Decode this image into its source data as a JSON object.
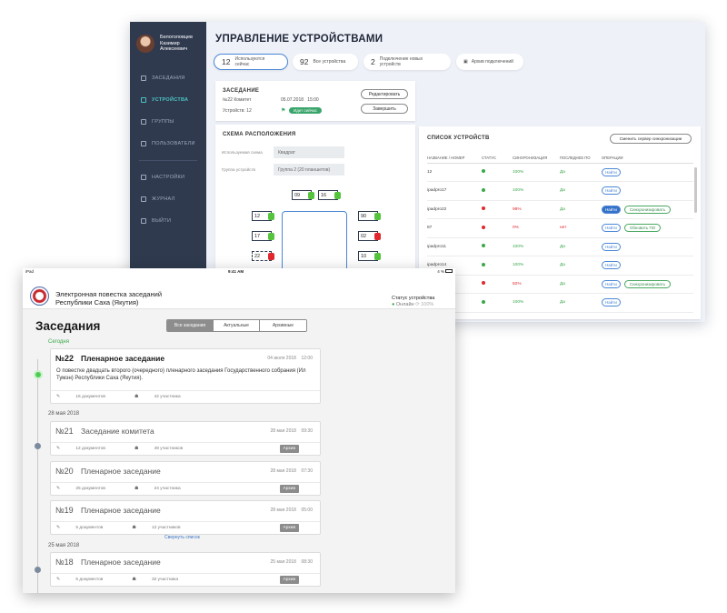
{
  "back": {
    "user": {
      "line1": "Белоголовцев",
      "line2": "Казимир",
      "line3": "Алексеевич"
    },
    "nav": [
      {
        "label": "ЗАСЕДАНИЯ"
      },
      {
        "label": "УСТРОЙСТВА"
      },
      {
        "label": "ГРУППЫ"
      },
      {
        "label": "ПОЛЬЗОВАТЕЛИ"
      },
      {
        "label": "НАСТРОЙКИ"
      },
      {
        "label": "ЖУРНАЛ"
      },
      {
        "label": "ВЫЙТИ"
      }
    ],
    "title": "УПРАВЛЕНИЕ УСТРОЙСТВАМИ",
    "stats": [
      {
        "num": "12",
        "label": "Используются сейчас"
      },
      {
        "num": "92",
        "label": "Все устройства"
      },
      {
        "num": "2",
        "label": "Подключение новых устройств"
      },
      {
        "num": "",
        "label": "Архив подключений"
      }
    ],
    "meeting": {
      "header": "ЗАСЕДАНИЕ",
      "number": "№22",
      "type": "Комитет",
      "date": "05.07.2018",
      "time": "15:00",
      "devices": "Устройств: 12",
      "status": "Идет сейчас",
      "edit": "Редактировать",
      "finish": "Завершить"
    },
    "scheme": {
      "header": "СХЕМА РАСПОЛОЖЕНИЯ",
      "scheme_label": "Используемая схема",
      "scheme_value": "Квадрат",
      "group_label": "Группа устройств",
      "group_value": "Группа 2 (20 планшетов)",
      "seats": [
        "09",
        "16",
        "12",
        "90",
        "17",
        "02",
        "22",
        "10"
      ]
    },
    "devices": {
      "header": "СПИСОК УСТРОЙСТВ",
      "change_server": "Сменить сервер синхронизации",
      "cols": [
        "НАЗВАНИЕ / НОМЕР",
        "СТАТУС",
        "СИНХРОНИЗАЦИЯ",
        "ПОСЛЕДНЕЕ ПО",
        "ОПЕРАЦИИ"
      ],
      "rows": [
        {
          "name": "12",
          "status": "green",
          "sync": "100%",
          "sync_color": "#3aa84a",
          "last": "Да",
          "find": "Найти",
          "extra": ""
        },
        {
          "name": "ipadpro17",
          "status": "green",
          "sync": "100%",
          "sync_color": "#3aa84a",
          "last": "Да",
          "find": "Найти",
          "extra": ""
        },
        {
          "name": "ipadpro22",
          "status": "red",
          "sync": "98%",
          "sync_color": "#e0282e",
          "last": "Да",
          "find": "Найти",
          "extra": "Синхронизировать"
        },
        {
          "name": "87",
          "status": "red",
          "sync": "0%",
          "sync_color": "#e0282e",
          "last": "нет",
          "find": "Найти",
          "extra": "Обновить ПО"
        },
        {
          "name": "ipadpro11",
          "status": "green",
          "sync": "100%",
          "sync_color": "#3aa84a",
          "last": "Да",
          "find": "Найти",
          "extra": ""
        },
        {
          "name": "ipadpro14",
          "status": "green",
          "sync": "100%",
          "sync_color": "#3aa84a",
          "last": "Да",
          "find": "Найти",
          "extra": ""
        },
        {
          "name": "",
          "status": "red",
          "sync": "82%",
          "sync_color": "#e0282e",
          "last": "Да",
          "find": "Найти",
          "extra": "Синхронизировать"
        },
        {
          "name": "",
          "status": "green",
          "sync": "100%",
          "sync_color": "#3aa84a",
          "last": "Да",
          "find": "Найти",
          "extra": ""
        }
      ]
    }
  },
  "front": {
    "statusbar": {
      "left": "iPad",
      "time": "9:41 AM",
      "right": "4 %"
    },
    "app_title_1": "Электронная повестка заседаний",
    "app_title_2": "Республики Саха (Якутия)",
    "online_label": "Статус устройства",
    "online": "Онлайн",
    "online_pct": "100%",
    "heading": "Заседания",
    "segments": [
      "Все заседания",
      "Актуальные",
      "Архивные"
    ],
    "groups": [
      {
        "label": "Сегодня"
      },
      {
        "label": "28 мая 2018"
      },
      {
        "label": "25 мая 2018"
      }
    ],
    "collapse": "Свернуть список",
    "sessions": [
      {
        "num": "№22",
        "title": "Пленарное заседание",
        "date": "04 июля 2018",
        "time": "12:00",
        "desc": "О повестке двадцать второго (очередного) пленарного заседания Государственного собрания (Ил Тумэн) Республики Саха (Якутия).",
        "docs": "16 документов",
        "members": "42 участника",
        "archive": ""
      },
      {
        "num": "№21",
        "title": "Заседание комитета",
        "date": "28 мая 2018",
        "time": "09:30",
        "desc": "",
        "docs": "12 документов",
        "members": "49 участников",
        "archive": "Архив"
      },
      {
        "num": "№20",
        "title": "Пленарное заседание",
        "date": "28 мая 2018",
        "time": "07:30",
        "desc": "",
        "docs": "25 документов",
        "members": "24 участника",
        "archive": "Архив"
      },
      {
        "num": "№19",
        "title": "Пленарное заседание",
        "date": "28 мая 2018",
        "time": "05:00",
        "desc": "",
        "docs": "5 документов",
        "members": "12 участников",
        "archive": "Архив"
      },
      {
        "num": "№18",
        "title": "Пленарное заседание",
        "date": "25 мая 2018",
        "time": "08:30",
        "desc": "",
        "docs": "5 документов",
        "members": "32 участника",
        "archive": "Архив"
      }
    ]
  }
}
